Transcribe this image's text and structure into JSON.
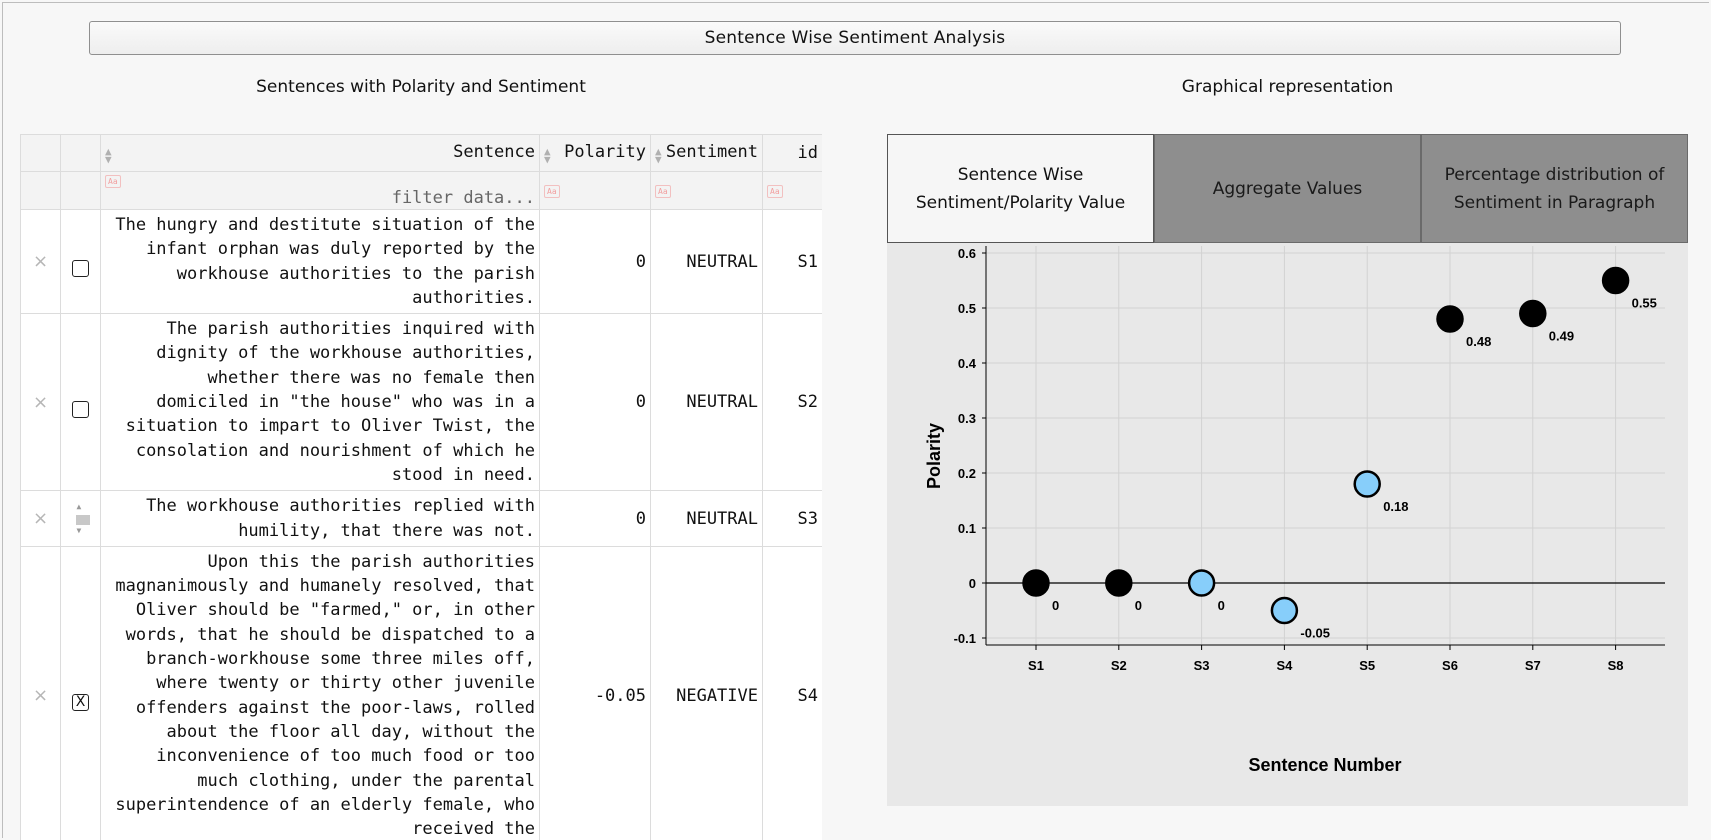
{
  "app": {
    "title": "Sentence Wise Sentiment Analysis",
    "left_heading": "Sentences with Polarity and Sentiment",
    "right_heading": "Graphical representation"
  },
  "table": {
    "columns": [
      "Sentence",
      "Polarity",
      "Sentiment",
      "id"
    ],
    "filter_placeholder": "filter data...",
    "filter_icon": "Aa",
    "delete_glyph": "×",
    "rows": [
      {
        "sentence": "The hungry and destitute situation of the infant orphan was duly reported by the workhouse authorities to the parish authorities.",
        "polarity": "0",
        "sentiment": "NEUTRAL",
        "id": "S1",
        "checked": false,
        "check_glyph": ""
      },
      {
        "sentence": "The parish authorities inquired with dignity of the workhouse authorities, whether there was no female then domiciled in \"the house\" who was in a situation to impart to Oliver Twist, the consolation and nourishment of which he stood in need.",
        "polarity": "0",
        "sentiment": "NEUTRAL",
        "id": "S2",
        "checked": false,
        "check_glyph": ""
      },
      {
        "sentence": "The workhouse authorities replied with humility, that there was not.",
        "polarity": "0",
        "sentiment": "NEUTRAL",
        "id": "S3",
        "checked": false,
        "check_glyph": ""
      },
      {
        "sentence": "Upon this the parish authorities magnanimously and humanely resolved, that Oliver should be \"farmed,\" or, in other words, that he should be dispatched to a branch-workhouse some three miles off, where twenty or thirty other juvenile offenders against the poor-laws, rolled about the floor all day, without the inconvenience of too much food or too much clothing, under the parental superintendence of an elderly female, who received the",
        "polarity": "-0.05",
        "sentiment": "NEGATIVE",
        "id": "S4",
        "checked": true,
        "check_glyph": "X"
      }
    ]
  },
  "tabs": [
    {
      "label_line1": "Sentence Wise",
      "label_line2": "Sentiment/Polarity Value",
      "active": true
    },
    {
      "label_line1": "Aggregate Values",
      "label_line2": "",
      "active": false
    },
    {
      "label_line1": "Percentage distribution of",
      "label_line2": "Sentiment in Paragraph",
      "active": false
    }
  ],
  "chart_data": {
    "type": "scatter",
    "title": "",
    "xlabel": "Sentence Number",
    "ylabel": "Polarity",
    "categories": [
      "S1",
      "S2",
      "S3",
      "S4",
      "S5",
      "S6",
      "S7",
      "S8"
    ],
    "values": [
      0,
      0,
      0,
      -0.05,
      0.18,
      0.48,
      0.49,
      0.55
    ],
    "point_labels": [
      "0",
      "0",
      "0",
      "-0.05",
      "0.18",
      "0.48",
      "0.49",
      "0.55"
    ],
    "point_colors": [
      "#000000",
      "#000000",
      "#87cefa",
      "#87cefa",
      "#87cefa",
      "#000000",
      "#000000",
      "#000000"
    ],
    "ylim": [
      -0.1,
      0.6
    ],
    "yticks": [
      -0.1,
      0,
      0.1,
      0.2,
      0.3,
      0.4,
      0.5,
      0.6
    ],
    "ytick_labels": [
      "-0.1",
      "0",
      "0.1",
      "0.2",
      "0.3",
      "0.4",
      "0.5",
      "0.6"
    ],
    "grid": true,
    "zero_line": true
  }
}
